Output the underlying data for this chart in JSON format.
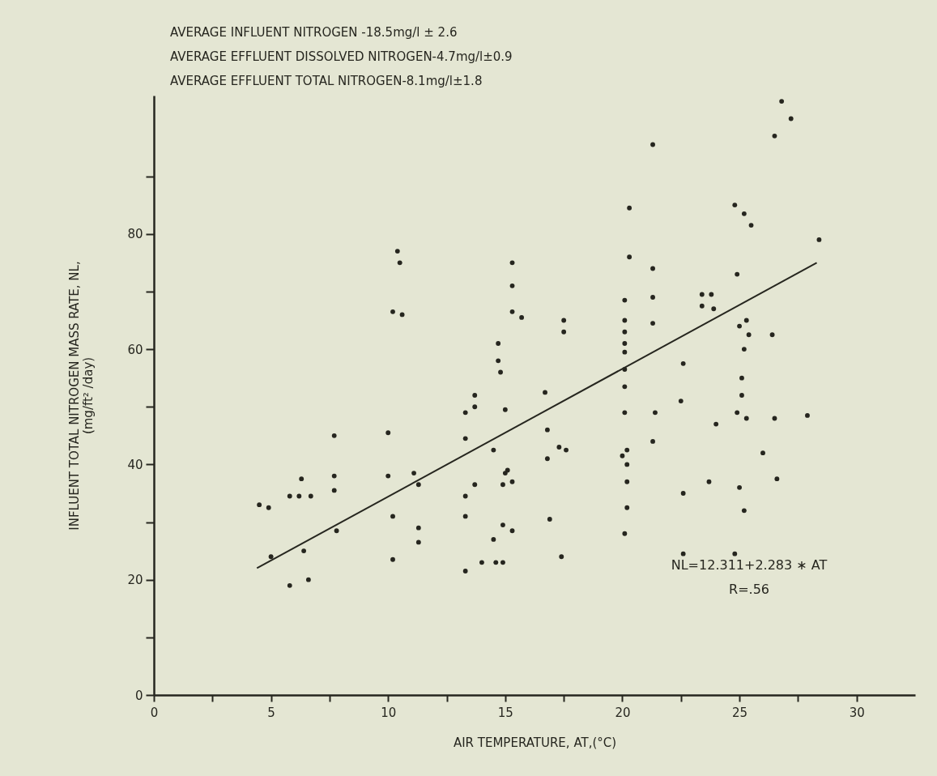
{
  "chart_data": {
    "type": "scatter",
    "xlabel": "AIR TEMPERATURE, AT,(°C)",
    "ylabel": "INFLUENT TOTAL NITROGEN MASS RATE, NL,\n(mg/ft² /day)",
    "annotations": [
      "AVERAGE INFLUENT NITROGEN -18.5mg/l ± 2.6",
      "AVERAGE EFFLUENT DISSOLVED NITROGEN-4.7mg/l±0.9",
      "AVERAGE EFFLUENT TOTAL NITROGEN-8.1mg/l±1.8",
      "NL=12.311+2.283 ∗ AT",
      "R=.56"
    ],
    "xlim": [
      0,
      32.5
    ],
    "ylim": [
      0,
      104
    ],
    "xticks": [
      0,
      {
        "value": 2.5,
        "label": null
      },
      5,
      {
        "value": 7.5,
        "label": null
      },
      10,
      {
        "value": 12.5,
        "label": null
      },
      15,
      {
        "value": 17.5,
        "label": null
      },
      20,
      {
        "value": 22.5,
        "label": null
      },
      25,
      {
        "value": 27.5,
        "label": null
      },
      30
    ],
    "yticks": [
      0,
      {
        "value": 10,
        "label": null
      },
      20,
      {
        "value": 30,
        "label": null
      },
      40,
      {
        "value": 50,
        "label": null
      },
      60,
      {
        "value": 70,
        "label": null
      },
      80,
      {
        "value": 90,
        "label": null
      }
    ],
    "series": [
      {
        "marker": "circle",
        "color": "#26261f",
        "x": [
          4.5,
          4.9,
          5.0,
          5.8,
          5.8,
          6.2,
          6.3,
          6.4,
          6.6,
          6.7,
          7.7,
          7.7,
          7.7,
          7.8,
          10.0,
          10.0,
          10.2,
          10.2,
          10.2,
          10.4,
          10.5,
          10.6,
          11.1,
          11.3,
          11.3,
          11.3,
          13.3,
          13.3,
          13.3,
          13.3,
          13.3,
          13.7,
          13.7,
          13.7,
          14.0,
          14.5,
          14.5,
          14.6,
          14.7,
          14.7,
          14.8,
          14.9,
          14.9,
          14.9,
          15.0,
          15.0,
          15.1,
          15.3,
          15.3,
          15.3,
          15.3,
          15.3,
          15.7,
          16.7,
          16.8,
          16.8,
          16.9,
          17.3,
          17.5,
          17.5,
          17.6,
          17.4,
          20.0,
          20.1,
          20.1,
          20.1,
          20.1,
          20.1,
          20.1,
          20.1,
          20.1,
          20.2,
          20.2,
          20.2,
          20.2,
          20.1,
          20.3,
          20.3,
          21.3,
          21.3,
          21.3,
          21.3,
          21.4,
          21.3,
          22.6,
          22.5,
          22.6,
          22.6,
          23.4,
          23.4,
          23.7,
          23.8,
          23.9,
          24.0,
          24.8,
          24.9,
          24.9,
          25.0,
          25.0,
          24.8,
          25.1,
          25.1,
          25.2,
          25.2,
          25.2,
          25.3,
          25.3,
          25.4,
          25.5,
          26.0,
          26.4,
          26.5,
          26.5,
          26.6,
          26.8,
          27.2,
          27.9,
          28.4
        ],
        "values": [
          33,
          32.5,
          24,
          19,
          34.5,
          34.5,
          37.5,
          25,
          20,
          34.5,
          45,
          38,
          35.5,
          28.5,
          45.5,
          38,
          66.5,
          31,
          23.5,
          77,
          75,
          66,
          38.5,
          36.5,
          29,
          26.5,
          49,
          44.5,
          34.5,
          31,
          21.5,
          52,
          50,
          36.5,
          23,
          42.5,
          27,
          23,
          61,
          58,
          56,
          36.5,
          29.5,
          23,
          49.5,
          38.5,
          39,
          75,
          71,
          66.5,
          37,
          28.5,
          65.5,
          52.5,
          46,
          41,
          30.5,
          43,
          65,
          63,
          42.5,
          24,
          41.5,
          49,
          53.5,
          56.5,
          59.5,
          61,
          63,
          65,
          68.5,
          42.5,
          40,
          37,
          32.5,
          28,
          84.5,
          76,
          95.5,
          74,
          69,
          64.5,
          49,
          44,
          57.5,
          51,
          35,
          24.5,
          69.5,
          67.5,
          37,
          69.5,
          67,
          47,
          85,
          73,
          49,
          64,
          36,
          24.5,
          55,
          52,
          60,
          32,
          83.5,
          65,
          48,
          62.5,
          81.5,
          42,
          62.5,
          48,
          97,
          37.5,
          103,
          100,
          48.5,
          79
        ]
      },
      {
        "type": "line",
        "color": "#26261f",
        "x": [
          4.4,
          28.3
        ],
        "values": [
          22,
          75
        ]
      }
    ]
  }
}
